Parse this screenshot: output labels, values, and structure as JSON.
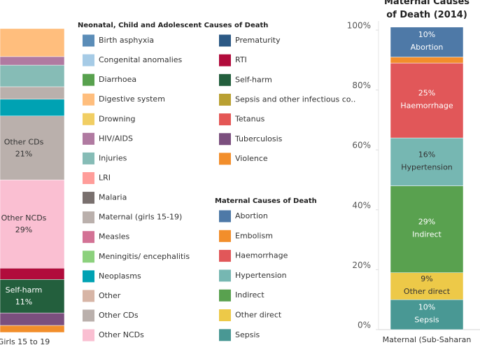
{
  "chart_data": [
    {
      "type": "stacked_bar",
      "categories": [
        "Girls 15 to 19"
      ],
      "legend_title": "Neonatal, Child and Adolescent Causes of Death",
      "ylim": [
        0,
        100
      ],
      "series": [
        {
          "name": "Birth asphyxia",
          "color": "#5b8db8",
          "values": [
            null
          ]
        },
        {
          "name": "Congenital anomalies",
          "color": "#a6cbe6",
          "values": [
            null
          ]
        },
        {
          "name": "Diarrhoea",
          "color": "#58a14e",
          "values": [
            null
          ]
        },
        {
          "name": "Digestive system",
          "color": "#ffbe7d",
          "values": [
            9.2
          ]
        },
        {
          "name": "Drowning",
          "color": "#f1ce63",
          "values": [
            null
          ]
        },
        {
          "name": "HIV/AIDS",
          "color": "#b07aa1",
          "values": [
            2.8
          ]
        },
        {
          "name": "Injuries",
          "color": "#86bcb6",
          "values": [
            7.1
          ]
        },
        {
          "name": "LRI",
          "color": "#ff9d9a",
          "values": [
            null
          ]
        },
        {
          "name": "Malaria",
          "color": "#79706e",
          "values": [
            null
          ]
        },
        {
          "name": "Maternal (girls 15-19)",
          "color": "#bab0ac",
          "values": [
            4.1
          ]
        },
        {
          "name": "Measles",
          "color": "#d37295",
          "values": [
            null
          ]
        },
        {
          "name": "Meningitis/ encephalitis",
          "color": "#8cd17d",
          "values": [
            null
          ]
        },
        {
          "name": "Neoplasms",
          "color": "#00a2b3",
          "values": [
            5.5
          ]
        },
        {
          "name": "Other",
          "color": "#d7b5a6",
          "values": [
            null
          ]
        },
        {
          "name": "Other CDs",
          "color": "#bab0ac",
          "values": [
            21
          ],
          "value_labels": [
            "21%"
          ]
        },
        {
          "name": "Other NCDs",
          "color": "#fabfd2",
          "values": [
            29
          ],
          "value_labels": [
            "29%"
          ]
        },
        {
          "name": "Prematurity",
          "color": "#2c5985",
          "values": [
            null
          ]
        },
        {
          "name": "RTI",
          "color": "#b10c3c",
          "values": [
            3.7
          ]
        },
        {
          "name": "Self-harm",
          "color": "#235f3d",
          "values": [
            11
          ],
          "value_labels": [
            "11%"
          ]
        },
        {
          "name": "Sepsis and other infectious co..",
          "color": "#b9a032",
          "values": [
            null
          ]
        },
        {
          "name": "Tetanus",
          "color": "#e45756",
          "values": [
            null
          ]
        },
        {
          "name": "Tuberculosis",
          "color": "#7b4f7e",
          "values": [
            4.1
          ]
        },
        {
          "name": "Violence",
          "color": "#f28e2b",
          "values": [
            2.3
          ]
        }
      ]
    },
    {
      "type": "stacked_bar",
      "title": "Maternal Causes of Death (2014)",
      "categories": [
        "Maternal (Sub-Saharan"
      ],
      "legend_title": "Maternal Causes of Death",
      "ylim": [
        0,
        100
      ],
      "yticks": [
        {
          "value": 0,
          "label": "0%"
        },
        {
          "value": 20,
          "label": "20%"
        },
        {
          "value": 40,
          "label": "40%"
        },
        {
          "value": 60,
          "label": "60%"
        },
        {
          "value": 80,
          "label": "80%"
        },
        {
          "value": 100,
          "label": "100%"
        }
      ],
      "series": [
        {
          "name": "Abortion",
          "color": "#4e79a7",
          "values": [
            10
          ],
          "value_labels": [
            "10%"
          ]
        },
        {
          "name": "Embolism",
          "color": "#f28e2b",
          "values": [
            2
          ]
        },
        {
          "name": "Haemorrhage",
          "color": "#e15759",
          "values": [
            25
          ],
          "value_labels": [
            "25%"
          ]
        },
        {
          "name": "Hypertension",
          "color": "#76b7b2",
          "values": [
            16
          ],
          "value_labels": [
            "16%"
          ]
        },
        {
          "name": "Indirect",
          "color": "#59a14f",
          "values": [
            29
          ],
          "value_labels": [
            "29%"
          ]
        },
        {
          "name": "Other direct",
          "color": "#edc948",
          "values": [
            9
          ],
          "value_labels": [
            "9%"
          ]
        },
        {
          "name": "Sepsis",
          "color": "#499894",
          "values": [
            10
          ],
          "value_labels": [
            "10%"
          ]
        }
      ]
    }
  ]
}
